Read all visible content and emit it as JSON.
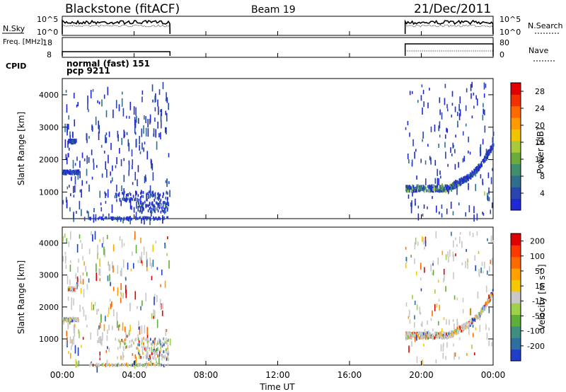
{
  "header": {
    "station": "Blackstone (fitACF)",
    "beam": "Beam 19",
    "date": "21/Dec/2011"
  },
  "chart_data": [
    {
      "type": "line",
      "panel": "noise",
      "ylabel": "N.Sky",
      "right_label": "N.Search",
      "left_ticks": [
        "10^5",
        "10^0"
      ],
      "right_ticks": [
        "10^5",
        "10^0"
      ],
      "segments": [
        [
          0.0,
          6.0
        ],
        [
          19.1,
          24.0
        ]
      ]
    },
    {
      "type": "line",
      "panel": "frequency",
      "ylabel": "Freq. [MHz]",
      "right_label": "Nave",
      "left_ticks": [
        "18",
        "8"
      ],
      "right_ticks": [
        "80",
        "0"
      ],
      "freq_mhz": 10.5,
      "segments": [
        [
          0.0,
          6.0
        ],
        [
          19.1,
          24.0
        ]
      ]
    },
    {
      "type": "table",
      "panel": "cpid",
      "label": "CPID",
      "lines": [
        "normal (fast) 151",
        "pcp 9211"
      ]
    },
    {
      "type": "heatmap",
      "panel": "power",
      "ylabel": "Slant Range [km]",
      "yticks": [
        "4000",
        "3000",
        "2000",
        "1000"
      ],
      "ylim": [
        180,
        4500
      ],
      "xlim": [
        0,
        24
      ],
      "colorbar": {
        "label": "Power [dB]",
        "ticks": [
          "28",
          "24",
          "20",
          "16",
          "12",
          "8",
          "4"
        ],
        "colors": [
          "#1f28d6",
          "#2a44b0",
          "#2f6f8d",
          "#3f8f6f",
          "#6caa3c",
          "#a7c93a",
          "#f2c400",
          "#ff9a00",
          "#ff6a00",
          "#f23000",
          "#e00000"
        ]
      }
    },
    {
      "type": "heatmap",
      "panel": "velocity",
      "ylabel": "Slant Range [km]",
      "yticks": [
        "4000",
        "3000",
        "2000",
        "1000"
      ],
      "ylim": [
        180,
        4500
      ],
      "xlim": [
        0,
        24
      ],
      "colorbar": {
        "label": "Velocity [m s⁻¹]",
        "ticks": [
          "200",
          "100",
          "50",
          "15",
          "-15",
          "-50",
          "-100",
          "-200"
        ],
        "colors": [
          "#1f3fc9",
          "#2f6fa0",
          "#3f8f7f",
          "#5caf3a",
          "#9fd04a",
          "#c8c8c8",
          "#f5c800",
          "#ffa000",
          "#ff6a00",
          "#ff3800",
          "#e00000"
        ]
      }
    },
    {
      "type": "axis",
      "panel": "time",
      "xticks": [
        "00:00",
        "04:00",
        "08:00",
        "12:00",
        "16:00",
        "20:00",
        "00:00"
      ],
      "xlabel": "Time UT"
    }
  ]
}
